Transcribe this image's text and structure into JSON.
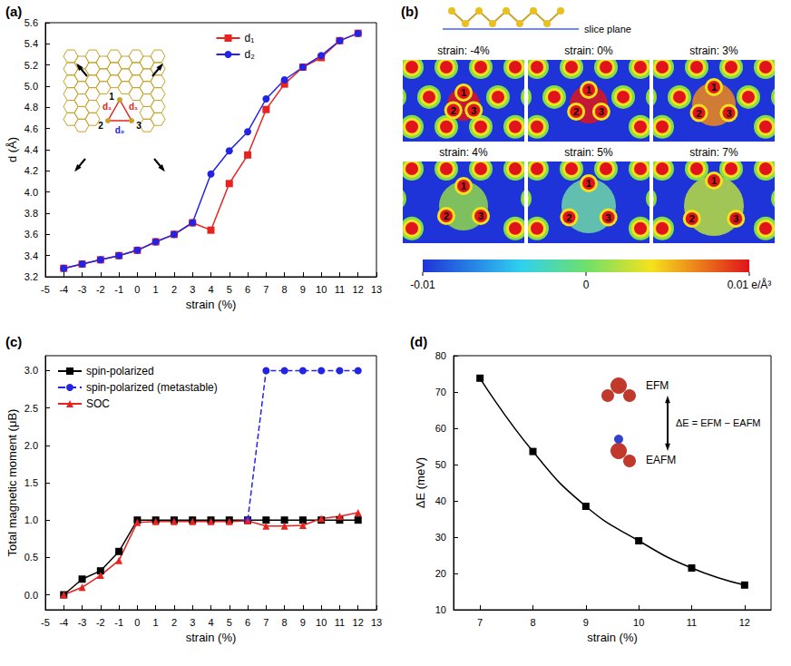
{
  "chart_data": [
    {
      "label": "(a)",
      "type": "line",
      "x": [
        -4,
        -3,
        -2,
        -1,
        0,
        1,
        2,
        3,
        4,
        5,
        6,
        7,
        8,
        9,
        10,
        11,
        12
      ],
      "series": [
        {
          "name": "d₁",
          "color": "#e8231f",
          "marker": "square",
          "line_style": "solid",
          "values": [
            3.28,
            3.32,
            3.36,
            3.4,
            3.45,
            3.53,
            3.6,
            3.71,
            3.64,
            4.08,
            4.35,
            4.78,
            5.02,
            5.18,
            5.27,
            5.43,
            5.5
          ]
        },
        {
          "name": "d₂",
          "color": "#2323e6",
          "marker": "circle",
          "line_style": "solid",
          "values": [
            3.28,
            3.32,
            3.36,
            3.4,
            3.45,
            3.53,
            3.6,
            3.71,
            4.17,
            4.39,
            4.57,
            4.88,
            5.06,
            5.18,
            5.29,
            5.43,
            5.5
          ]
        }
      ],
      "xlabel": "strain (%)",
      "ylabel": "d (Å)",
      "xlim": [
        -5,
        13
      ],
      "xticks": [
        -5,
        -4,
        -3,
        -2,
        -1,
        0,
        1,
        2,
        3,
        4,
        5,
        6,
        7,
        8,
        9,
        10,
        11,
        12,
        13
      ],
      "ylim": [
        3.2,
        5.6
      ],
      "yticks": [
        3.2,
        3.4,
        3.6,
        3.8,
        {
          "value": 4,
          "label": "4.0"
        },
        4.2,
        4.4,
        4.6,
        4.8,
        {
          "value": 5,
          "label": "5.0"
        },
        5.2,
        5.4,
        5.6
      ],
      "legend": "top",
      "annotations": [
        "1",
        "2",
        "3",
        "d₁",
        "d₁",
        "d₂"
      ]
    },
    {
      "label": "(c)",
      "type": "line",
      "x": [
        -4,
        -3,
        -2,
        -1,
        0,
        1,
        2,
        3,
        4,
        5,
        6,
        7,
        8,
        9,
        10,
        11,
        12
      ],
      "series": [
        {
          "name": "spin-polarized",
          "color": "#000000",
          "marker": "square",
          "line_style": "solid",
          "values": [
            0.0,
            0.21,
            0.32,
            0.58,
            1.0,
            1.0,
            1.0,
            1.0,
            1.0,
            1.0,
            1.0,
            1.0,
            1.0,
            1.0,
            1.0,
            1.0,
            1.0
          ]
        },
        {
          "name": "spin-polarized (metastable)",
          "color": "#2323e6",
          "marker": "circle",
          "line_style": "dashed",
          "values": [
            null,
            null,
            null,
            null,
            null,
            null,
            null,
            null,
            null,
            null,
            1.0,
            3.0,
            3.0,
            3.0,
            3.0,
            3.0,
            3.0
          ]
        },
        {
          "name": "SOC",
          "color": "#e8231f",
          "marker": "triangle",
          "line_style": "solid",
          "values": [
            0.0,
            0.1,
            0.26,
            0.46,
            0.97,
            0.98,
            0.98,
            0.98,
            0.98,
            0.98,
            0.99,
            0.92,
            0.92,
            0.93,
            1.02,
            1.05,
            1.1
          ]
        }
      ],
      "xlabel": "strain (%)",
      "ylabel": "Total magnetic moment (μB)",
      "xlim": [
        -5,
        13
      ],
      "xticks": [
        -5,
        -4,
        -3,
        -2,
        -1,
        0,
        1,
        2,
        3,
        4,
        5,
        6,
        7,
        8,
        9,
        10,
        11,
        12,
        13
      ],
      "ylim": [
        -0.2,
        3.2
      ],
      "yticks": [
        {
          "value": 0,
          "label": "0.0"
        },
        0.5,
        {
          "value": 1,
          "label": "1.0"
        },
        1.5,
        {
          "value": 2,
          "label": "2.0"
        },
        2.5,
        {
          "value": 3,
          "label": "3.0"
        }
      ],
      "legend": "top-left"
    },
    {
      "label": "(d)",
      "type": "line",
      "x": [
        7,
        8,
        9,
        10,
        11,
        12
      ],
      "values": [
        73.8,
        53.6,
        38.5,
        29.0,
        21.5,
        16.8
      ],
      "color": "#000000",
      "marker": "square",
      "line_style": "smooth",
      "xlabel": "strain (%)",
      "ylabel": "ΔE (meV)",
      "xlim": [
        6.5,
        12.5
      ],
      "xticks": [
        7,
        8,
        9,
        10,
        11,
        12
      ],
      "ylim": [
        10,
        80
      ],
      "yticks": [
        10,
        20,
        30,
        40,
        50,
        60,
        70,
        80
      ],
      "annotations": [
        "EFM",
        "EAFM",
        "ΔE = EFM − EAFM"
      ]
    }
  ],
  "panel_b": {
    "label": "(b)",
    "slice_label": "slice plane",
    "maps": [
      "strain: -4%",
      "strain: 0%",
      "strain: 3%",
      "strain: 4%",
      "strain: 5%",
      "strain: 7%"
    ],
    "sites": [
      "1",
      "2",
      "3"
    ],
    "colorbar": {
      "range": [
        -0.01,
        0.01
      ],
      "ticks": [
        -0.01,
        0,
        {
          "value": 0.01,
          "label": "0.01 e/Å³"
        }
      ]
    }
  }
}
